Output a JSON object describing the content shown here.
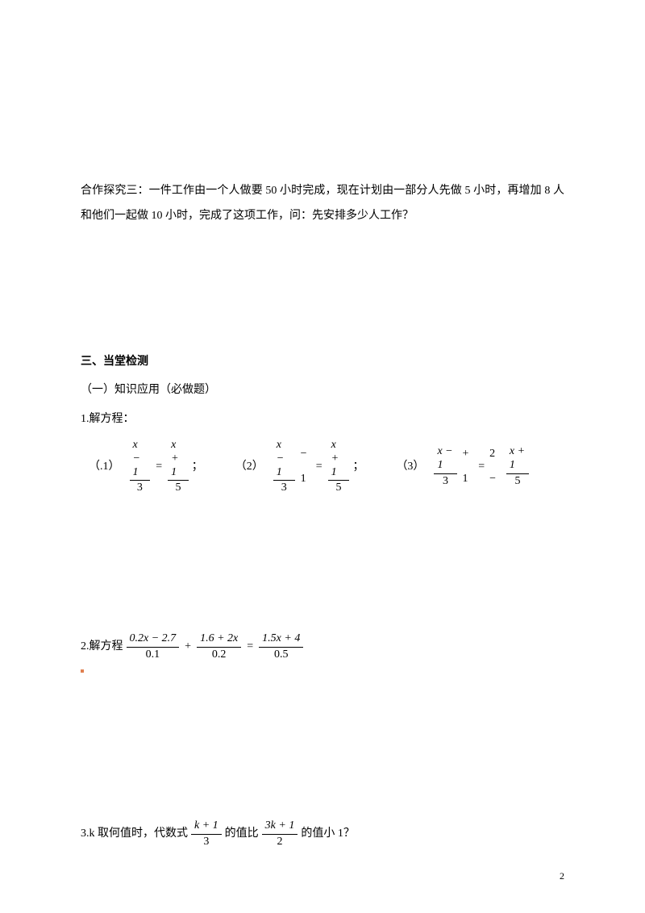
{
  "exploration": {
    "text": "合作探究三：一件工作由一个人做要 50 小时完成，现在计划由一部分人先做 5 小时，再增加 8 人和他们一起做 10 小时，完成了这项工作，问：先安排多少人工作？"
  },
  "sectionTitle": "三、当堂检测",
  "subsection": "（一）知识应用（必做题）",
  "problem1": {
    "label": "1.解方程：",
    "eq1_label": "（.1）",
    "eq1_semicolon": "；",
    "eq2_label": "（2）",
    "eq2_semicolon": "；",
    "eq3_label": "（3）",
    "frac1_num": "x − 1",
    "frac1_den": "3",
    "frac2_num": "x + 1",
    "frac2_den": "5",
    "equals": "=",
    "minus1": "− 1",
    "plus1": "+ 1",
    "two_minus": "2 −"
  },
  "problem2": {
    "label": "2.解方程",
    "frac1_num": "0.2x − 2.7",
    "frac1_den": "0.1",
    "plus": "+",
    "frac2_num": "1.6 + 2x",
    "frac2_den": "0.2",
    "equals": "=",
    "frac3_num": "1.5x + 4",
    "frac3_den": "0.5"
  },
  "problem3": {
    "label_before": "3.k 取何值时，代数式",
    "frac1_num": "k + 1",
    "frac1_den": "3",
    "label_mid": "的值比",
    "frac2_num": "3k + 1",
    "frac2_den": "2",
    "label_after": "的值小 1？"
  },
  "pageNumber": "2",
  "colors": {
    "text": "#000000",
    "background": "#ffffff",
    "redDot": "#e08050"
  }
}
